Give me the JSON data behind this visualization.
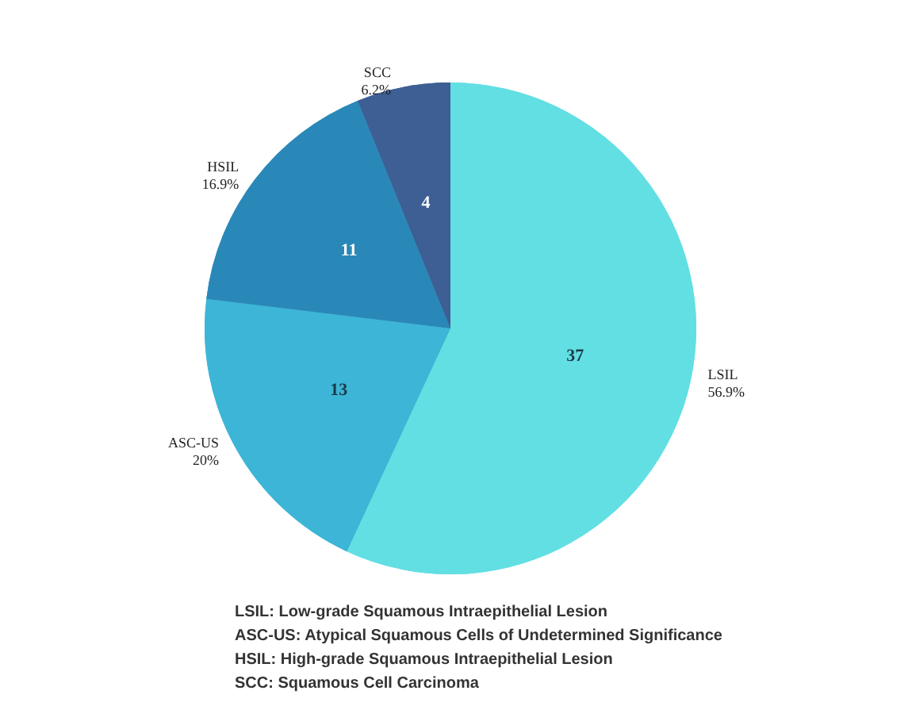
{
  "chart_data": {
    "type": "pie",
    "categories": [
      "LSIL",
      "ASC-US",
      "HSIL",
      "SCC"
    ],
    "values": [
      37,
      13,
      11,
      4
    ],
    "colors": [
      "#62dfe3",
      "#3db5d6",
      "#2a88b8",
      "#3d5f93"
    ],
    "data_labels": true,
    "legend": false,
    "annotations": [
      {
        "text": "56.9%",
        "x": "LSIL"
      },
      {
        "text": "20%",
        "x": "ASC-US"
      },
      {
        "text": "16.9%",
        "x": "HSIL"
      },
      {
        "text": "6.2%",
        "x": "SCC"
      },
      "LSIL: Low-grade Squamous Intraepithelial Lesion",
      "ASC-US: Atypical Squamous Cells of Undetermined Significance",
      "HSIL: High-grade Squamous Intraepithelial Lesion",
      "SCC: Squamous Cell Carcinoma"
    ]
  }
}
